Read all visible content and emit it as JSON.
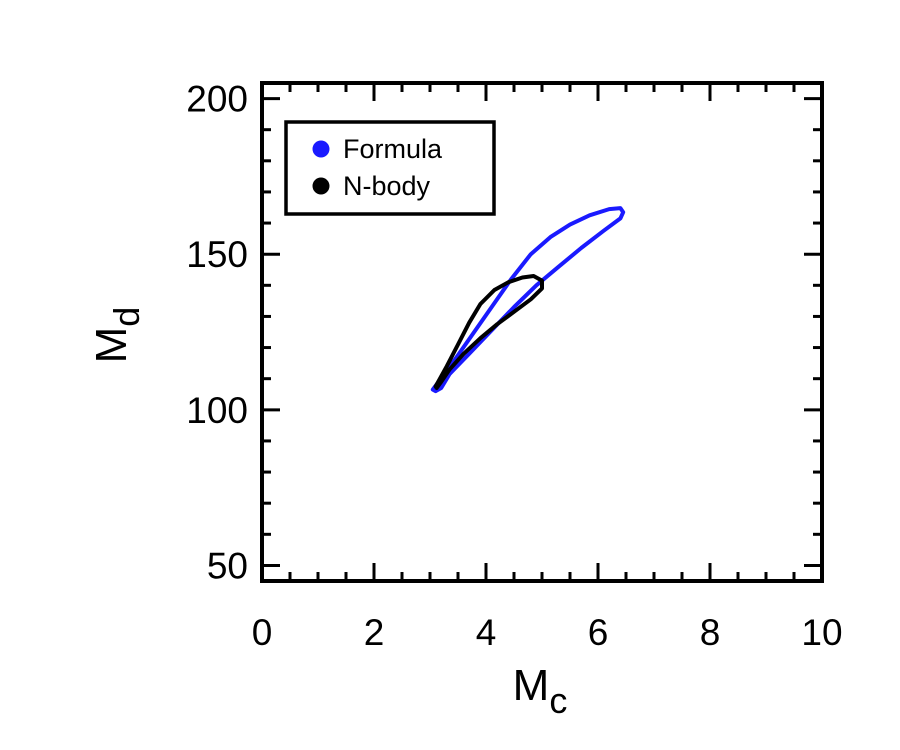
{
  "chart_data": {
    "type": "line",
    "title": "",
    "xlabel": {
      "main": "M",
      "sub": "c"
    },
    "ylabel": {
      "main": "M",
      "sub": "d"
    },
    "xlim": [
      0,
      10
    ],
    "ylim": [
      45,
      205
    ],
    "x_ticks": [
      0,
      2,
      4,
      6,
      8,
      10
    ],
    "x_tick_labels": [
      "0",
      "2",
      "4",
      "6",
      "8",
      "10"
    ],
    "y_ticks": [
      50,
      100,
      150,
      200
    ],
    "y_tick_labels": [
      "50",
      "100",
      "150",
      "200"
    ],
    "grid": false,
    "legend_position": "top-left",
    "series": [
      {
        "name": "Formula",
        "color": "#1a1aff",
        "points": [
          [
            3.05,
            106.5
          ],
          [
            3.4,
            115
          ],
          [
            3.75,
            124
          ],
          [
            4.1,
            133
          ],
          [
            4.45,
            142
          ],
          [
            4.8,
            150
          ],
          [
            5.15,
            155.5
          ],
          [
            5.5,
            159.5
          ],
          [
            5.85,
            162.5
          ],
          [
            6.2,
            164.5
          ],
          [
            6.4,
            164.8
          ],
          [
            6.45,
            163.5
          ],
          [
            6.4,
            161.5
          ],
          [
            6.1,
            157.5
          ],
          [
            5.7,
            152
          ],
          [
            5.3,
            146
          ],
          [
            4.9,
            140
          ],
          [
            4.5,
            133
          ],
          [
            4.1,
            125.5
          ],
          [
            3.7,
            118
          ],
          [
            3.35,
            111.5
          ],
          [
            3.2,
            107
          ],
          [
            3.1,
            106
          ],
          [
            3.05,
            106.5
          ]
        ]
      },
      {
        "name": "N-body",
        "color": "#000000",
        "points": [
          [
            3.1,
            107.5
          ],
          [
            3.3,
            114
          ],
          [
            3.5,
            121
          ],
          [
            3.7,
            128
          ],
          [
            3.9,
            134
          ],
          [
            4.15,
            138.5
          ],
          [
            4.4,
            141
          ],
          [
            4.65,
            142.5
          ],
          [
            4.85,
            143
          ],
          [
            5.0,
            141.5
          ],
          [
            5.0,
            139
          ],
          [
            4.8,
            135.5
          ],
          [
            4.5,
            131.5
          ],
          [
            4.2,
            127.5
          ],
          [
            3.9,
            123
          ],
          [
            3.6,
            118
          ],
          [
            3.35,
            113
          ],
          [
            3.2,
            109
          ],
          [
            3.12,
            107
          ],
          [
            3.1,
            107.5
          ]
        ]
      }
    ]
  }
}
